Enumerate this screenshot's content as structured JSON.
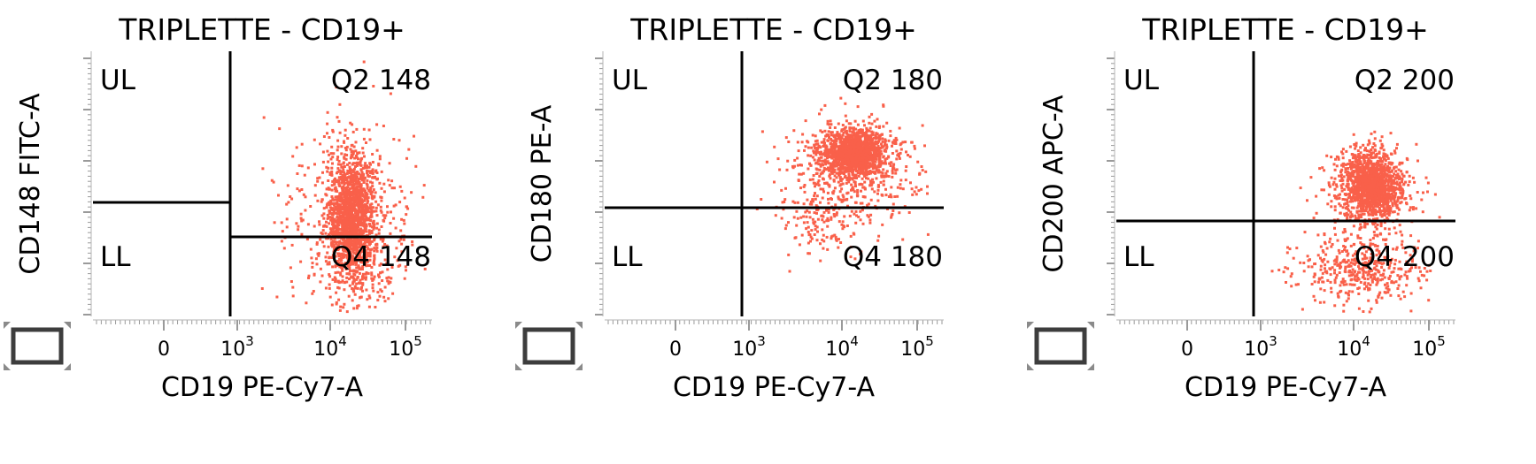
{
  "chart_data": [
    {
      "type": "scatter",
      "title": "TRIPLETTE - CD19+",
      "xlabel": "CD19 PE-Cy7-A",
      "ylabel": "CD148 FITC-A",
      "x_ticks": [
        "0",
        "10",
        "10",
        "10"
      ],
      "x_tick_exps": [
        "",
        "3",
        "4",
        "5"
      ],
      "x_gate": "vertical",
      "y_gate_left": 0.43,
      "y_gate_right": 0.3,
      "quadrant_labels": {
        "ul": "UL",
        "ll": "LL",
        "q2": "Q2 148",
        "q4": "Q4 148"
      },
      "point_color": "#f9604a",
      "clusters": [
        {
          "cx": 0.76,
          "cy": 0.38,
          "sx": 0.035,
          "sy": 0.11,
          "n": 1500
        },
        {
          "cx": 0.76,
          "cy": 0.4,
          "sx": 0.11,
          "sy": 0.2,
          "n": 380
        },
        {
          "cx": 0.77,
          "cy": 0.18,
          "sx": 0.06,
          "sy": 0.07,
          "n": 140
        }
      ]
    },
    {
      "type": "scatter",
      "title": "TRIPLETTE - CD19+",
      "xlabel": "CD19 PE-Cy7-A",
      "ylabel": "CD180 PE-A",
      "x_ticks": [
        "0",
        "10",
        "10",
        "10"
      ],
      "x_tick_exps": [
        "",
        "3",
        "4",
        "5"
      ],
      "x_gate": "vertical",
      "y_gate_left": 0.41,
      "y_gate_right": 0.41,
      "quadrant_labels": {
        "ul": "UL",
        "ll": "LL",
        "q2": "Q2 180",
        "q4": "Q4 180"
      },
      "point_color": "#f9604a",
      "clusters": [
        {
          "cx": 0.73,
          "cy": 0.62,
          "sx": 0.05,
          "sy": 0.045,
          "n": 1300
        },
        {
          "cx": 0.72,
          "cy": 0.55,
          "sx": 0.1,
          "sy": 0.1,
          "n": 420
        },
        {
          "cx": 0.64,
          "cy": 0.38,
          "sx": 0.07,
          "sy": 0.07,
          "n": 140
        }
      ]
    },
    {
      "type": "scatter",
      "title": "TRIPLETTE - CD19+",
      "xlabel": "CD19 PE-Cy7-A",
      "ylabel": "CD200 APC-A",
      "x_ticks": [
        "0",
        "10",
        "10",
        "10"
      ],
      "x_tick_exps": [
        "",
        "3",
        "4",
        "5"
      ],
      "x_gate": "vertical",
      "y_gate_left": 0.36,
      "y_gate_right": 0.36,
      "quadrant_labels": {
        "ul": "UL",
        "ll": "LL",
        "q2": "Q2 200",
        "q4": "Q4 200"
      },
      "point_color": "#f9604a",
      "clusters": [
        {
          "cx": 0.75,
          "cy": 0.5,
          "sx": 0.04,
          "sy": 0.06,
          "n": 1200
        },
        {
          "cx": 0.75,
          "cy": 0.47,
          "sx": 0.07,
          "sy": 0.1,
          "n": 380
        },
        {
          "cx": 0.72,
          "cy": 0.18,
          "sx": 0.09,
          "sy": 0.07,
          "n": 420
        }
      ]
    }
  ]
}
